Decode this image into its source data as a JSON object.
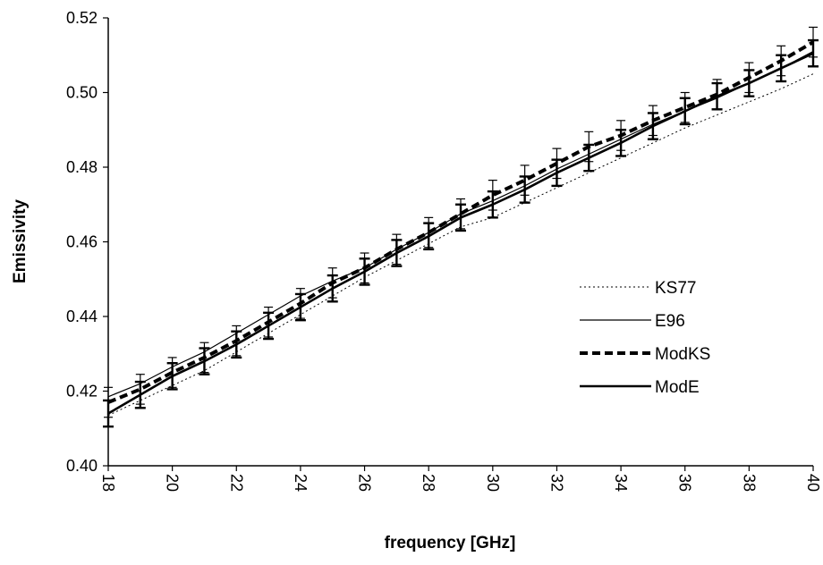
{
  "chart_data": {
    "type": "line",
    "xlabel": "frequency [GHz]",
    "ylabel": "Emissivity",
    "xlim": [
      18,
      40
    ],
    "ylim": [
      0.4,
      0.52
    ],
    "x_ticks": [
      "18",
      "20",
      "22",
      "24",
      "26",
      "28",
      "30",
      "32",
      "34",
      "36",
      "38",
      "40"
    ],
    "y_ticks": [
      "0.40",
      "0.42",
      "0.44",
      "0.46",
      "0.48",
      "0.50",
      "0.52"
    ],
    "grid": false,
    "legend_position": "right",
    "x": [
      18,
      19,
      20,
      21,
      22,
      23,
      24,
      25,
      26,
      27,
      28,
      29,
      30,
      31,
      32,
      33,
      34,
      35,
      36,
      37,
      38,
      39,
      40
    ],
    "series": [
      {
        "name": "KS77",
        "style": "dotted-thin",
        "color": "#000000",
        "values": [
          0.4135,
          0.4175,
          0.4215,
          0.4255,
          0.4305,
          0.4355,
          0.4405,
          0.4455,
          0.4505,
          0.455,
          0.4595,
          0.464,
          0.4665,
          0.4705,
          0.4745,
          0.4785,
          0.4825,
          0.4865,
          0.4905,
          0.494,
          0.4975,
          0.501,
          0.505
        ]
      },
      {
        "name": "E96",
        "style": "solid-thin",
        "color": "#000000",
        "values": [
          0.4185,
          0.422,
          0.4265,
          0.4305,
          0.4355,
          0.4405,
          0.4455,
          0.4495,
          0.453,
          0.458,
          0.4625,
          0.4675,
          0.471,
          0.475,
          0.4795,
          0.4835,
          0.4875,
          0.4915,
          0.495,
          0.4985,
          0.5025,
          0.5065,
          0.511
        ]
      },
      {
        "name": "ModKS",
        "style": "dashed-thick",
        "color": "#000000",
        "values": [
          0.417,
          0.4205,
          0.425,
          0.429,
          0.4335,
          0.4385,
          0.4435,
          0.449,
          0.453,
          0.458,
          0.4625,
          0.4675,
          0.4725,
          0.4765,
          0.481,
          0.4855,
          0.4885,
          0.4925,
          0.496,
          0.4995,
          0.504,
          0.5085,
          0.5135
        ]
      },
      {
        "name": "ModE",
        "style": "solid-thick",
        "color": "#000000",
        "values": [
          0.414,
          0.419,
          0.424,
          0.428,
          0.4325,
          0.4375,
          0.4425,
          0.4475,
          0.452,
          0.457,
          0.4615,
          0.4665,
          0.47,
          0.474,
          0.4785,
          0.4825,
          0.4865,
          0.491,
          0.495,
          0.499,
          0.5025,
          0.5065,
          0.5105
        ]
      }
    ],
    "error_bars": [
      {
        "series": "ModKS",
        "err": 0.004
      },
      {
        "series": "ModE",
        "err": 0.0035
      }
    ]
  }
}
